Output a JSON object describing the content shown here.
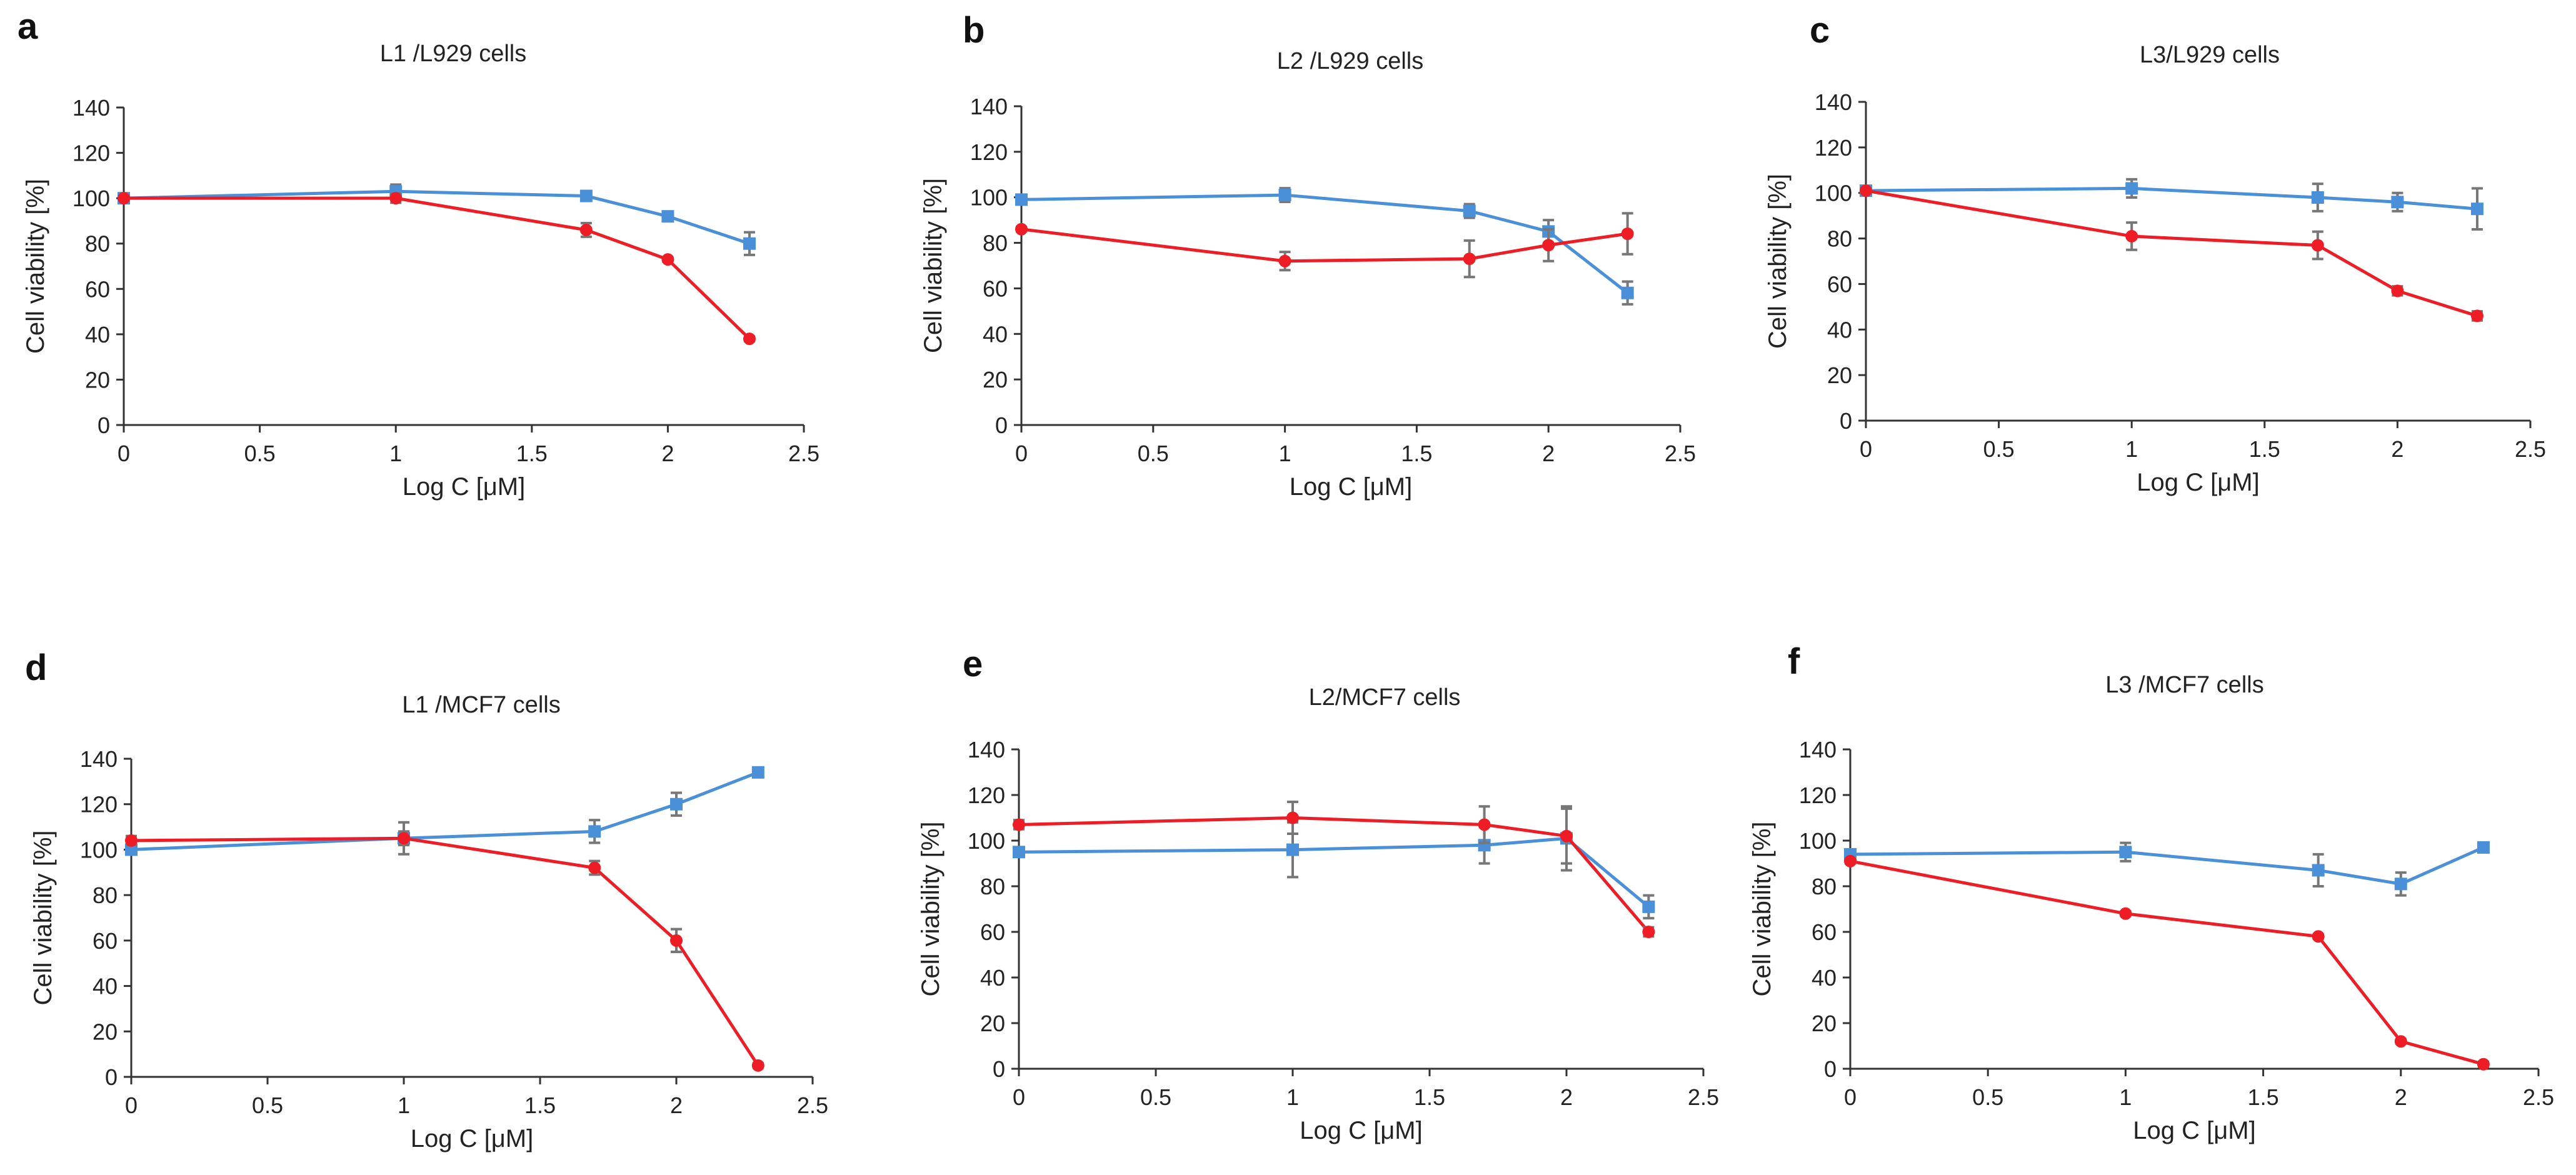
{
  "chart_data": [
    {
      "panel": "a",
      "type": "line",
      "title": "L1 /L929 cells",
      "xlabel": "Log C [μM]",
      "ylabel": "Cell viability [%]",
      "xlim": [
        0,
        2.5
      ],
      "ylim": [
        0,
        140
      ],
      "xticks": [
        "0",
        "0.5",
        "1",
        "1.5",
        "2",
        "2.5"
      ],
      "yticks": [
        "0",
        "20",
        "40",
        "60",
        "80",
        "100",
        "120",
        "140"
      ],
      "series": [
        {
          "name": "blue",
          "color": "#4a90d9",
          "marker": "square",
          "x": [
            0,
            1,
            1.7,
            2,
            2.3
          ],
          "y": [
            100,
            103,
            101,
            92,
            80
          ],
          "err": [
            1,
            3,
            2,
            2,
            5
          ]
        },
        {
          "name": "red",
          "color": "#ee1c24",
          "marker": "circle",
          "x": [
            0,
            1,
            1.7,
            2,
            2.3
          ],
          "y": [
            100,
            100,
            86,
            73,
            38
          ],
          "err": [
            1,
            2,
            3,
            1,
            1
          ]
        }
      ]
    },
    {
      "panel": "b",
      "type": "line",
      "title": "L2 /L929 cells",
      "xlabel": "Log C [μM]",
      "ylabel": "Cell viability [%]",
      "xlim": [
        0,
        2.5
      ],
      "ylim": [
        0,
        140
      ],
      "xticks": [
        "0",
        "0.5",
        "1",
        "1.5",
        "2",
        "2.5"
      ],
      "yticks": [
        "0",
        "20",
        "40",
        "60",
        "80",
        "100",
        "120",
        "140"
      ],
      "series": [
        {
          "name": "blue",
          "color": "#4a90d9",
          "marker": "square",
          "x": [
            0,
            1,
            1.7,
            2,
            2.3
          ],
          "y": [
            99,
            101,
            94,
            85,
            58
          ],
          "err": [
            2,
            3,
            3,
            5,
            5
          ]
        },
        {
          "name": "red",
          "color": "#ee1c24",
          "marker": "circle",
          "x": [
            0,
            1,
            1.7,
            2,
            2.3
          ],
          "y": [
            86,
            72,
            73,
            79,
            84
          ],
          "err": [
            1,
            4,
            8,
            7,
            9
          ]
        }
      ]
    },
    {
      "panel": "c",
      "type": "line",
      "title": "L3/L929 cells",
      "xlabel": "Log C [μM]",
      "ylabel": "Cell viability [%]",
      "xlim": [
        0,
        2.5
      ],
      "ylim": [
        0,
        140
      ],
      "xticks": [
        "0",
        "0.5",
        "1",
        "1.5",
        "2",
        "2.5"
      ],
      "yticks": [
        "0",
        "20",
        "40",
        "60",
        "80",
        "100",
        "120",
        "140"
      ],
      "series": [
        {
          "name": "blue",
          "color": "#4a90d9",
          "marker": "square",
          "x": [
            0,
            1,
            1.7,
            2,
            2.3
          ],
          "y": [
            101,
            102,
            98,
            96,
            93
          ],
          "err": [
            1,
            4,
            6,
            4,
            9
          ]
        },
        {
          "name": "red",
          "color": "#ee1c24",
          "marker": "circle",
          "x": [
            0,
            1,
            1.7,
            2,
            2.3
          ],
          "y": [
            101,
            81,
            77,
            57,
            46
          ],
          "err": [
            1,
            6,
            6,
            2,
            2
          ]
        }
      ]
    },
    {
      "panel": "d",
      "type": "line",
      "title": "L1 /MCF7 cells",
      "xlabel": "Log C [μM]",
      "ylabel": "Cell viability [%]",
      "xlim": [
        0,
        2.5
      ],
      "ylim": [
        0,
        140
      ],
      "xticks": [
        "0",
        "0.5",
        "1",
        "1.5",
        "2",
        "2.5"
      ],
      "yticks": [
        "0",
        "20",
        "40",
        "60",
        "80",
        "100",
        "120",
        "140"
      ],
      "series": [
        {
          "name": "blue",
          "color": "#4a90d9",
          "marker": "square",
          "x": [
            0,
            1,
            1.7,
            2,
            2.3
          ],
          "y": [
            100,
            105,
            108,
            120,
            134
          ],
          "err": [
            2,
            7,
            5,
            5,
            2
          ]
        },
        {
          "name": "red",
          "color": "#ee1c24",
          "marker": "circle",
          "x": [
            0,
            1,
            1.7,
            2,
            2.3
          ],
          "y": [
            104,
            105,
            92,
            60,
            5
          ],
          "err": [
            2,
            3,
            3,
            5,
            1
          ]
        }
      ]
    },
    {
      "panel": "e",
      "type": "line",
      "title": "L2/MCF7 cells",
      "xlabel": "Log C [μM]",
      "ylabel": "Cell viability [%]",
      "xlim": [
        0,
        2.5
      ],
      "ylim": [
        0,
        140
      ],
      "xticks": [
        "0",
        "0.5",
        "1",
        "1.5",
        "2",
        "2.5"
      ],
      "yticks": [
        "0",
        "20",
        "40",
        "60",
        "80",
        "100",
        "120",
        "140"
      ],
      "series": [
        {
          "name": "blue",
          "color": "#4a90d9",
          "marker": "square",
          "x": [
            0,
            1,
            1.7,
            2,
            2.3
          ],
          "y": [
            95,
            96,
            98,
            101,
            71
          ],
          "err": [
            2,
            12,
            8,
            14,
            5
          ]
        },
        {
          "name": "red",
          "color": "#ee1c24",
          "marker": "circle",
          "x": [
            0,
            1,
            1.7,
            2,
            2.3
          ],
          "y": [
            107,
            110,
            107,
            102,
            60
          ],
          "err": [
            2,
            7,
            8,
            12,
            2
          ]
        }
      ]
    },
    {
      "panel": "f",
      "type": "line",
      "title": "L3 /MCF7 cells",
      "xlabel": "Log C [μM]",
      "ylabel": "Cell viability [%]",
      "xlim": [
        0,
        2.5
      ],
      "ylim": [
        0,
        140
      ],
      "xticks": [
        "0",
        "0.5",
        "1",
        "1.5",
        "2",
        "2.5"
      ],
      "yticks": [
        "0",
        "20",
        "40",
        "60",
        "80",
        "100",
        "120",
        "140"
      ],
      "series": [
        {
          "name": "blue",
          "color": "#4a90d9",
          "marker": "square",
          "x": [
            0,
            1,
            1.7,
            2,
            2.3
          ],
          "y": [
            94,
            95,
            87,
            81,
            97
          ],
          "err": [
            2,
            4,
            7,
            5,
            2
          ]
        },
        {
          "name": "red",
          "color": "#ee1c24",
          "marker": "circle",
          "x": [
            0,
            1,
            1.7,
            2,
            2.3
          ],
          "y": [
            91,
            68,
            58,
            12,
            2
          ],
          "err": [
            1,
            1,
            1,
            1,
            1
          ]
        }
      ]
    }
  ]
}
